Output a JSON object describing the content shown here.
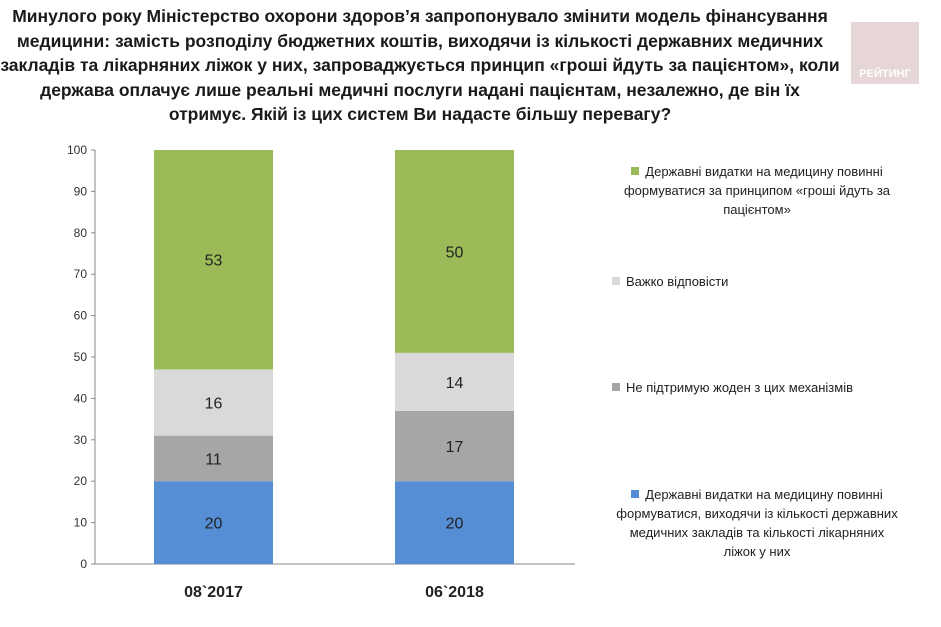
{
  "title": "Минулого року Міністерство охорони здоров’я запропонувало змінити модель фінансування медицини: замість розподілу бюджетних коштів, виходячи із кількості державних медичних закладів та лікарняних ліжок у них, запроваджується принцип «гроші йдуть за пацієнтом», коли держава оплачує лише реальні медичні послуги надані пацієнтам, незалежно, де він їх отримує. Якій із цих систем Ви надасте більшу перевагу?",
  "logo": "РЕЙТИНГ",
  "chart_data": {
    "type": "bar",
    "stacked": true,
    "categories": [
      "08`2017",
      "06`2018"
    ],
    "ylim": [
      0,
      100
    ],
    "yticks": [
      0,
      10,
      20,
      30,
      40,
      50,
      60,
      70,
      80,
      90,
      100
    ],
    "legend_position": "right",
    "series": [
      {
        "name": "Державні видатки на медицину повинні формуватися, виходячи із кількості державних медичних закладів та кількості лікарняних ліжок у них",
        "color": "#558ed5",
        "values": [
          20,
          20
        ]
      },
      {
        "name": "Не підтримую жоден з цих механізмів",
        "color": "#a6a6a6",
        "values": [
          11,
          17
        ]
      },
      {
        "name": "Важко відповісти",
        "color": "#d9d9d9",
        "values": [
          16,
          14
        ]
      },
      {
        "name": "Державні видатки на медицину повинні формуватися за принципом «гроші йдуть за пацієнтом»",
        "color": "#9bbb59",
        "values": [
          53,
          50
        ]
      }
    ]
  }
}
